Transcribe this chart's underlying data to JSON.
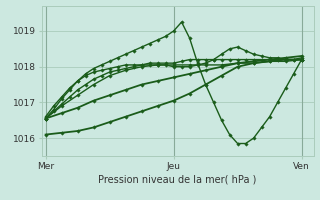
{
  "xlabel": "Pression niveau de la mer( hPa )",
  "background_color": "#cce8e0",
  "grid_color": "#aaccbb",
  "line_color": "#1a5c1a",
  "x_ticks_pos": [
    0,
    16,
    32
  ],
  "x_tick_labels": [
    "Mer",
    "Jeu",
    "Ven"
  ],
  "ylim": [
    1015.5,
    1019.7
  ],
  "xlim": [
    -0.5,
    33.5
  ],
  "yticks": [
    1016,
    1017,
    1018,
    1019
  ],
  "series": [
    {
      "x": [
        0,
        1,
        2,
        3,
        4,
        5,
        6,
        7,
        8,
        9,
        10,
        11,
        12,
        13,
        14,
        15,
        16,
        17,
        18,
        19,
        20,
        21,
        22,
        23,
        24,
        25,
        26,
        27,
        28,
        29,
        30,
        31,
        32
      ],
      "y": [
        1016.55,
        1016.75,
        1016.95,
        1017.15,
        1017.35,
        1017.5,
        1017.65,
        1017.75,
        1017.85,
        1017.9,
        1017.95,
        1018.0,
        1018.05,
        1018.1,
        1018.1,
        1018.1,
        1018.1,
        1018.15,
        1018.2,
        1018.2,
        1018.2,
        1018.2,
        1018.2,
        1018.2,
        1018.2,
        1018.2,
        1018.2,
        1018.2,
        1018.2,
        1018.2,
        1018.2,
        1018.2,
        1018.25
      ],
      "lw": 1.0
    },
    {
      "x": [
        0,
        1,
        2,
        3,
        4,
        5,
        6,
        7,
        8,
        9,
        10,
        11,
        12,
        13,
        14,
        15,
        16,
        17,
        18,
        19,
        20,
        21,
        22,
        23,
        24,
        25,
        26,
        27,
        28,
        29,
        30,
        31,
        32
      ],
      "y": [
        1016.55,
        1016.8,
        1017.1,
        1017.35,
        1017.6,
        1017.8,
        1017.95,
        1018.05,
        1018.15,
        1018.25,
        1018.35,
        1018.45,
        1018.55,
        1018.65,
        1018.75,
        1018.85,
        1019.0,
        1019.25,
        1018.8,
        1018.1,
        1017.5,
        1017.0,
        1016.5,
        1016.1,
        1015.85,
        1015.85,
        1016.0,
        1016.3,
        1016.6,
        1017.0,
        1017.4,
        1017.8,
        1018.2
      ],
      "lw": 1.0
    },
    {
      "x": [
        0,
        2,
        4,
        6,
        8,
        10,
        12,
        14,
        16,
        18,
        20,
        22,
        24,
        26,
        28,
        30,
        32
      ],
      "y": [
        1016.55,
        1016.7,
        1016.85,
        1017.05,
        1017.2,
        1017.35,
        1017.5,
        1017.6,
        1017.7,
        1017.8,
        1017.9,
        1018.0,
        1018.1,
        1018.15,
        1018.2,
        1018.25,
        1018.3
      ],
      "lw": 1.3
    },
    {
      "x": [
        0,
        2,
        4,
        6,
        8,
        10,
        12,
        14,
        16,
        18,
        20,
        22,
        24,
        26,
        28,
        30,
        32
      ],
      "y": [
        1016.1,
        1016.15,
        1016.2,
        1016.3,
        1016.45,
        1016.6,
        1016.75,
        1016.9,
        1017.05,
        1017.25,
        1017.5,
        1017.75,
        1018.0,
        1018.1,
        1018.15,
        1018.2,
        1018.2
      ],
      "lw": 1.3
    },
    {
      "x": [
        0,
        1,
        2,
        3,
        4,
        5,
        6,
        7,
        8,
        9,
        10,
        11,
        12,
        13,
        14,
        15,
        16,
        17,
        18,
        19,
        20,
        21,
        22,
        23,
        24,
        25,
        26,
        27,
        28,
        29,
        30,
        31,
        32
      ],
      "y": [
        1016.6,
        1016.9,
        1017.15,
        1017.4,
        1017.6,
        1017.75,
        1017.85,
        1017.9,
        1017.95,
        1018.0,
        1018.05,
        1018.05,
        1018.05,
        1018.05,
        1018.05,
        1018.05,
        1018.0,
        1018.0,
        1018.0,
        1018.05,
        1018.1,
        1018.2,
        1018.35,
        1018.5,
        1018.55,
        1018.45,
        1018.35,
        1018.3,
        1018.25,
        1018.25,
        1018.2,
        1018.2,
        1018.2
      ],
      "lw": 1.0
    },
    {
      "x": [
        0,
        2,
        4,
        6,
        8,
        10,
        12,
        14,
        16,
        18,
        20,
        22,
        24,
        26,
        28,
        30,
        32
      ],
      "y": [
        1016.55,
        1016.9,
        1017.2,
        1017.5,
        1017.75,
        1017.9,
        1018.0,
        1018.05,
        1018.05,
        1018.05,
        1018.05,
        1018.05,
        1018.1,
        1018.1,
        1018.15,
        1018.15,
        1018.2
      ],
      "lw": 1.0
    }
  ]
}
